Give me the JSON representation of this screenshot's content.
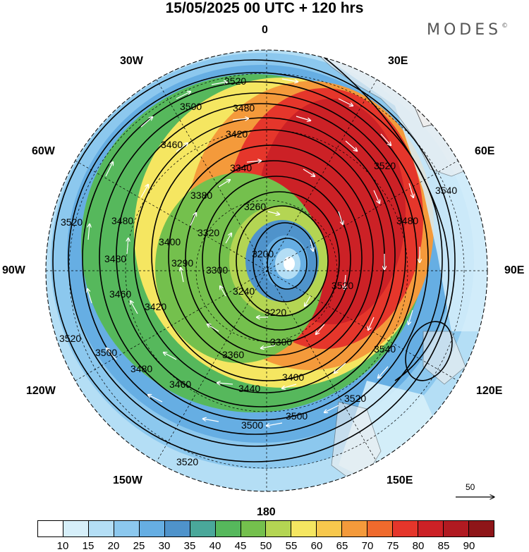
{
  "title": "15/05/2025  00 UTC  + 120 hrs",
  "brand": "MODES",
  "brand_mark": "©",
  "longitude_labels": {
    "top": "0",
    "top_left": "30W",
    "top_right": "30E",
    "upper_left": "60W",
    "upper_right": "60E",
    "left": "90W",
    "right": "90E",
    "lower_left": "120W",
    "lower_right": "120E",
    "bottom_left": "150W",
    "bottom_right": "150E",
    "bottom": "180"
  },
  "contour_labels": [
    "3520",
    "3500",
    "3480",
    "3460",
    "3420",
    "3340",
    "3380",
    "3260",
    "3200",
    "3220",
    "3300",
    "3360",
    "3440",
    "3400",
    "3540",
    "3240",
    "3320",
    "3290"
  ],
  "reference_vector_label": "50",
  "colorbar": {
    "colors": [
      "#ffffff",
      "#d6effa",
      "#b4def5",
      "#8cc8ee",
      "#66aee3",
      "#4f93cb",
      "#4aa89a",
      "#56b85c",
      "#74c04d",
      "#b4d553",
      "#f5e661",
      "#f7c84d",
      "#f49a3b",
      "#ef6a2d",
      "#e5362b",
      "#cc2126",
      "#b11a21",
      "#8e1518"
    ],
    "ticks": [
      "10",
      "15",
      "20",
      "25",
      "30",
      "35",
      "40",
      "45",
      "50",
      "55",
      "60",
      "65",
      "70",
      "75",
      "80",
      "85",
      "90"
    ]
  },
  "map_colors": {
    "ocean_outer": "#6aaee2",
    "jet_core": "#cc2126",
    "contour": "#000000",
    "graticule": "#000000"
  }
}
